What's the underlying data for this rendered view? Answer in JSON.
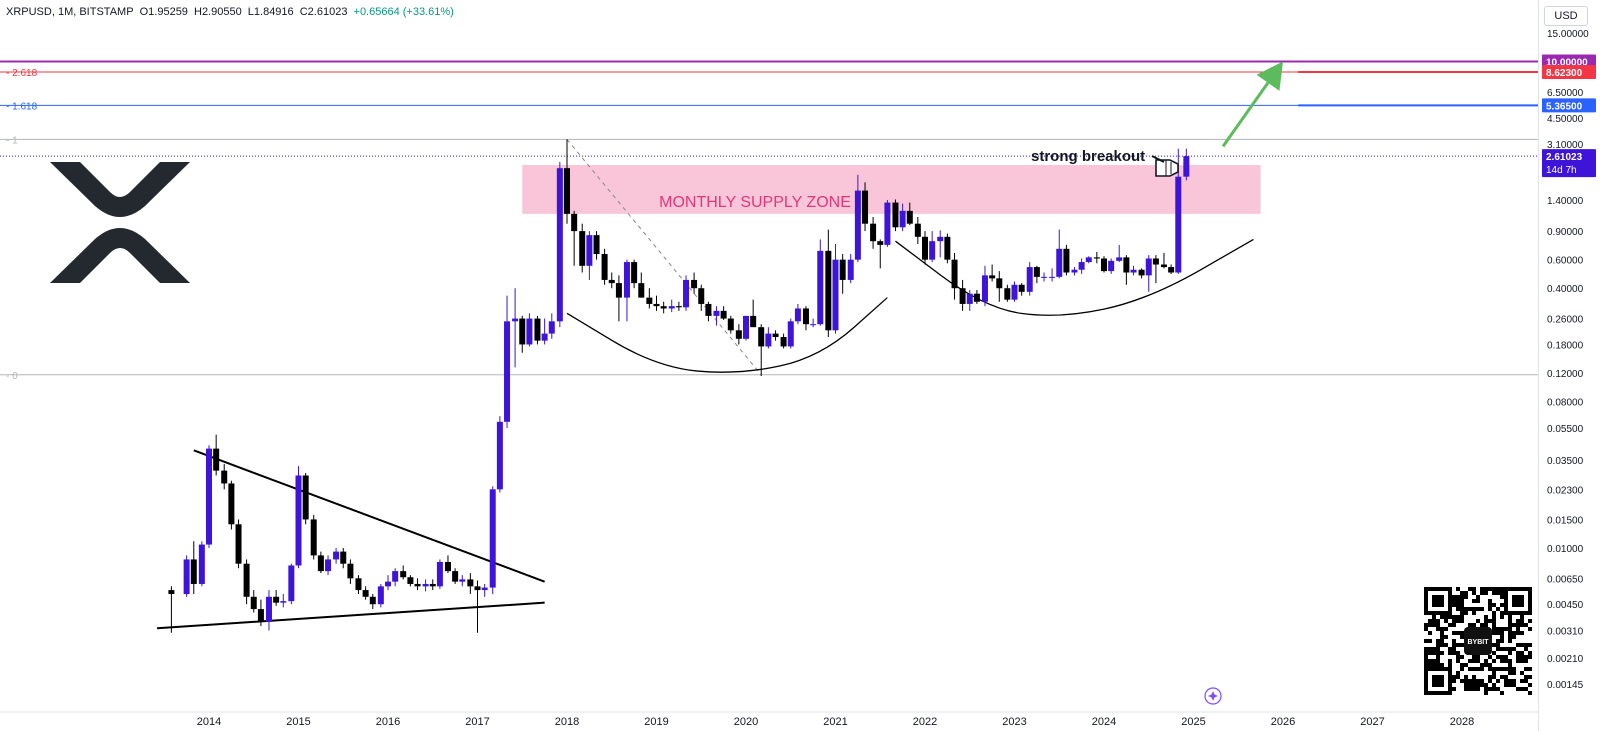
{
  "header": {
    "symbol": "XRPUSD, 1M, BITSTAMP",
    "open": "O1.95259",
    "high": "H2.90550",
    "low": "L1.84916",
    "close": "C2.61023",
    "change": "+0.65664 (+33.61%)"
  },
  "currency_button": "USD",
  "colors": {
    "bull": "#3d14d8",
    "bear": "#000000",
    "supply_zone": "#f8c6d8",
    "supply_text": "#e5357a",
    "fib_10": "#9c27b0",
    "fib_8": "#f23645",
    "fib_5": "#2962ff",
    "arrow": "#5cbb5c"
  },
  "chart_data": {
    "type": "candlestick",
    "scale": "log",
    "ylim": [
      0.0014,
      20
    ],
    "x_range": [
      "2013-06",
      "2028-12"
    ],
    "x_ticks": [
      "2014",
      "2015",
      "2016",
      "2017",
      "2018",
      "2019",
      "2020",
      "2021",
      "2022",
      "2023",
      "2024",
      "2025",
      "2026",
      "2027",
      "2028"
    ],
    "y_ticks": [
      "15.00000",
      "6.50000",
      "4.50000",
      "3.10000",
      "1.40000",
      "0.90000",
      "0.60000",
      "0.40000",
      "0.26000",
      "0.18000",
      "0.12000",
      "0.08000",
      "0.05500",
      "0.03500",
      "0.02300",
      "0.01500",
      "0.01000",
      "0.00650",
      "0.00450",
      "0.00310",
      "0.00210",
      "0.00145"
    ],
    "price_tags": [
      {
        "label": "10.00000",
        "value": 10.0,
        "color": "#9c27b0"
      },
      {
        "label": "8.62300",
        "value": 8.623,
        "color": "#f23645"
      },
      {
        "label": "5.36500",
        "value": 5.365,
        "color": "#2962ff"
      },
      {
        "label": "2.61023",
        "value": 2.61023,
        "color": "#3d14d8",
        "sub": "14d 7h"
      }
    ],
    "fib_levels": [
      {
        "label": "2.618",
        "value": 8.623,
        "color": "#f23645"
      },
      {
        "label": "1.618",
        "value": 5.365,
        "color": "#2962ff"
      },
      {
        "label": "1",
        "value": 3.31,
        "color": "#b2b5be"
      },
      {
        "label": "0",
        "value": 0.117,
        "color": "#b2b5be"
      }
    ],
    "annotations": {
      "supply_zone_label": "MONTHLY SUPPLY ZONE",
      "supply_zone_range": [
        1.15,
        2.3
      ],
      "breakout_label": "strong breakout"
    },
    "candles": [
      [
        2013.58,
        0.0055,
        0.0058,
        0.003,
        0.0052
      ],
      [
        2013.75,
        0.0052,
        0.009,
        0.005,
        0.0085
      ],
      [
        2013.83,
        0.0085,
        0.011,
        0.0052,
        0.006
      ],
      [
        2013.92,
        0.006,
        0.011,
        0.0058,
        0.0105
      ],
      [
        2014.0,
        0.0105,
        0.043,
        0.01,
        0.041
      ],
      [
        2014.08,
        0.041,
        0.05,
        0.028,
        0.03
      ],
      [
        2014.17,
        0.03,
        0.033,
        0.023,
        0.025
      ],
      [
        2014.25,
        0.025,
        0.026,
        0.013,
        0.014
      ],
      [
        2014.33,
        0.014,
        0.015,
        0.0075,
        0.008
      ],
      [
        2014.42,
        0.008,
        0.0085,
        0.0045,
        0.005
      ],
      [
        2014.5,
        0.005,
        0.0055,
        0.004,
        0.0042
      ],
      [
        2014.58,
        0.0042,
        0.0048,
        0.0033,
        0.0035
      ],
      [
        2014.67,
        0.0035,
        0.0055,
        0.0031,
        0.005
      ],
      [
        2014.75,
        0.005,
        0.0055,
        0.0044,
        0.0046
      ],
      [
        2014.83,
        0.0046,
        0.0052,
        0.0043,
        0.0047
      ],
      [
        2014.92,
        0.0047,
        0.008,
        0.0045,
        0.0078
      ],
      [
        2015.0,
        0.0078,
        0.032,
        0.0075,
        0.028
      ],
      [
        2015.08,
        0.028,
        0.029,
        0.014,
        0.015
      ],
      [
        2015.17,
        0.015,
        0.016,
        0.0085,
        0.009
      ],
      [
        2015.25,
        0.009,
        0.0095,
        0.007,
        0.0072
      ],
      [
        2015.33,
        0.0072,
        0.009,
        0.0068,
        0.0085
      ],
      [
        2015.42,
        0.0085,
        0.01,
        0.008,
        0.0095
      ],
      [
        2015.5,
        0.0095,
        0.01,
        0.0075,
        0.008
      ],
      [
        2015.58,
        0.008,
        0.0085,
        0.006,
        0.0065
      ],
      [
        2015.67,
        0.0065,
        0.0068,
        0.0052,
        0.0055
      ],
      [
        2015.75,
        0.0055,
        0.0058,
        0.0048,
        0.005
      ],
      [
        2015.83,
        0.005,
        0.0052,
        0.0042,
        0.0045
      ],
      [
        2015.92,
        0.0045,
        0.006,
        0.0043,
        0.0058
      ],
      [
        2016.0,
        0.0058,
        0.0068,
        0.0055,
        0.0062
      ],
      [
        2016.08,
        0.0062,
        0.0075,
        0.0058,
        0.0072
      ],
      [
        2016.17,
        0.0072,
        0.0078,
        0.0064,
        0.0066
      ],
      [
        2016.25,
        0.0066,
        0.0068,
        0.0058,
        0.006
      ],
      [
        2016.33,
        0.006,
        0.0065,
        0.0055,
        0.0058
      ],
      [
        2016.42,
        0.0058,
        0.0064,
        0.0054,
        0.006
      ],
      [
        2016.5,
        0.006,
        0.0064,
        0.0055,
        0.0058
      ],
      [
        2016.58,
        0.0058,
        0.0085,
        0.0056,
        0.0082
      ],
      [
        2016.67,
        0.0082,
        0.009,
        0.007,
        0.0072
      ],
      [
        2016.75,
        0.0072,
        0.0075,
        0.006,
        0.0062
      ],
      [
        2016.83,
        0.0062,
        0.0068,
        0.0058,
        0.0064
      ],
      [
        2016.92,
        0.0064,
        0.007,
        0.0052,
        0.0058
      ],
      [
        2017.0,
        0.0058,
        0.0063,
        0.003,
        0.0055
      ],
      [
        2017.08,
        0.0055,
        0.006,
        0.005,
        0.0057
      ],
      [
        2017.17,
        0.0057,
        0.024,
        0.0052,
        0.023
      ],
      [
        2017.25,
        0.023,
        0.065,
        0.022,
        0.06
      ],
      [
        2017.33,
        0.06,
        0.36,
        0.055,
        0.25
      ],
      [
        2017.42,
        0.25,
        0.4,
        0.13,
        0.26
      ],
      [
        2017.5,
        0.26,
        0.27,
        0.16,
        0.18
      ],
      [
        2017.58,
        0.18,
        0.28,
        0.175,
        0.26
      ],
      [
        2017.67,
        0.26,
        0.27,
        0.18,
        0.19
      ],
      [
        2017.75,
        0.19,
        0.26,
        0.18,
        0.21
      ],
      [
        2017.83,
        0.21,
        0.28,
        0.195,
        0.25
      ],
      [
        2017.92,
        0.25,
        2.4,
        0.23,
        2.2
      ],
      [
        2018.0,
        2.2,
        3.31,
        1.0,
        1.15
      ],
      [
        2018.08,
        1.15,
        1.2,
        0.55,
        0.9
      ],
      [
        2018.17,
        0.9,
        1.0,
        0.5,
        0.55
      ],
      [
        2018.25,
        0.55,
        0.9,
        0.45,
        0.85
      ],
      [
        2018.33,
        0.85,
        0.9,
        0.6,
        0.65
      ],
      [
        2018.42,
        0.65,
        0.7,
        0.42,
        0.45
      ],
      [
        2018.5,
        0.45,
        0.5,
        0.4,
        0.43
      ],
      [
        2018.58,
        0.43,
        0.48,
        0.25,
        0.35
      ],
      [
        2018.67,
        0.35,
        0.6,
        0.25,
        0.58
      ],
      [
        2018.75,
        0.58,
        0.6,
        0.4,
        0.43
      ],
      [
        2018.83,
        0.43,
        0.5,
        0.35,
        0.35
      ],
      [
        2018.92,
        0.35,
        0.4,
        0.3,
        0.32
      ],
      [
        2019.0,
        0.32,
        0.36,
        0.29,
        0.31
      ],
      [
        2019.08,
        0.31,
        0.33,
        0.28,
        0.3
      ],
      [
        2019.17,
        0.3,
        0.34,
        0.285,
        0.31
      ],
      [
        2019.25,
        0.31,
        0.33,
        0.29,
        0.305
      ],
      [
        2019.33,
        0.305,
        0.48,
        0.29,
        0.45
      ],
      [
        2019.42,
        0.45,
        0.5,
        0.37,
        0.4
      ],
      [
        2019.5,
        0.4,
        0.42,
        0.29,
        0.32
      ],
      [
        2019.58,
        0.32,
        0.33,
        0.25,
        0.27
      ],
      [
        2019.67,
        0.27,
        0.31,
        0.235,
        0.29
      ],
      [
        2019.75,
        0.29,
        0.31,
        0.255,
        0.26
      ],
      [
        2019.83,
        0.26,
        0.27,
        0.21,
        0.22
      ],
      [
        2019.92,
        0.22,
        0.24,
        0.18,
        0.195
      ],
      [
        2020.0,
        0.195,
        0.27,
        0.19,
        0.27
      ],
      [
        2020.08,
        0.27,
        0.34,
        0.25,
        0.23
      ],
      [
        2020.17,
        0.23,
        0.24,
        0.115,
        0.175
      ],
      [
        2020.25,
        0.175,
        0.23,
        0.17,
        0.21
      ],
      [
        2020.33,
        0.21,
        0.22,
        0.19,
        0.2
      ],
      [
        2020.42,
        0.2,
        0.21,
        0.17,
        0.175
      ],
      [
        2020.5,
        0.175,
        0.26,
        0.17,
        0.25
      ],
      [
        2020.58,
        0.25,
        0.32,
        0.24,
        0.3
      ],
      [
        2020.67,
        0.3,
        0.31,
        0.22,
        0.24
      ],
      [
        2020.75,
        0.24,
        0.26,
        0.23,
        0.24
      ],
      [
        2020.83,
        0.24,
        0.8,
        0.235,
        0.68
      ],
      [
        2020.92,
        0.68,
        0.92,
        0.2,
        0.22
      ],
      [
        2021.0,
        0.22,
        0.75,
        0.21,
        0.6
      ],
      [
        2021.08,
        0.6,
        0.65,
        0.37,
        0.45
      ],
      [
        2021.17,
        0.45,
        0.65,
        0.43,
        0.6
      ],
      [
        2021.25,
        0.6,
        2.0,
        0.58,
        1.6
      ],
      [
        2021.33,
        1.6,
        1.8,
        0.9,
        1.0
      ],
      [
        2021.42,
        1.0,
        1.1,
        0.7,
        0.78
      ],
      [
        2021.5,
        0.78,
        0.8,
        0.53,
        0.74
      ],
      [
        2021.58,
        0.74,
        1.4,
        0.72,
        1.35
      ],
      [
        2021.67,
        1.35,
        1.41,
        0.9,
        0.95
      ],
      [
        2021.75,
        0.95,
        1.33,
        0.9,
        1.2
      ],
      [
        2021.83,
        1.2,
        1.35,
        0.98,
        1.0
      ],
      [
        2021.92,
        1.0,
        1.1,
        0.75,
        0.83
      ],
      [
        2022.0,
        0.83,
        0.9,
        0.56,
        0.6
      ],
      [
        2022.08,
        0.6,
        0.9,
        0.58,
        0.78
      ],
      [
        2022.17,
        0.78,
        0.91,
        0.62,
        0.83
      ],
      [
        2022.25,
        0.83,
        0.87,
        0.57,
        0.6
      ],
      [
        2022.33,
        0.6,
        0.66,
        0.34,
        0.4
      ],
      [
        2022.42,
        0.4,
        0.45,
        0.29,
        0.32
      ],
      [
        2022.5,
        0.32,
        0.39,
        0.29,
        0.37
      ],
      [
        2022.58,
        0.37,
        0.39,
        0.32,
        0.33
      ],
      [
        2022.67,
        0.33,
        0.55,
        0.31,
        0.48
      ],
      [
        2022.75,
        0.48,
        0.56,
        0.44,
        0.46
      ],
      [
        2022.83,
        0.46,
        0.51,
        0.33,
        0.4
      ],
      [
        2022.92,
        0.4,
        0.42,
        0.33,
        0.34
      ],
      [
        2023.0,
        0.34,
        0.44,
        0.33,
        0.42
      ],
      [
        2023.08,
        0.42,
        0.43,
        0.36,
        0.38
      ],
      [
        2023.17,
        0.38,
        0.58,
        0.36,
        0.54
      ],
      [
        2023.25,
        0.54,
        0.55,
        0.43,
        0.47
      ],
      [
        2023.33,
        0.47,
        0.5,
        0.44,
        0.47
      ],
      [
        2023.42,
        0.47,
        0.53,
        0.44,
        0.47
      ],
      [
        2023.5,
        0.47,
        0.92,
        0.46,
        0.7
      ],
      [
        2023.58,
        0.7,
        0.74,
        0.48,
        0.5
      ],
      [
        2023.67,
        0.5,
        0.54,
        0.48,
        0.52
      ],
      [
        2023.75,
        0.52,
        0.61,
        0.49,
        0.58
      ],
      [
        2023.83,
        0.58,
        0.63,
        0.57,
        0.62
      ],
      [
        2023.92,
        0.62,
        0.67,
        0.57,
        0.61
      ],
      [
        2024.0,
        0.61,
        0.63,
        0.5,
        0.51
      ],
      [
        2024.08,
        0.51,
        0.61,
        0.49,
        0.59
      ],
      [
        2024.17,
        0.59,
        0.74,
        0.58,
        0.62
      ],
      [
        2024.25,
        0.62,
        0.64,
        0.42,
        0.5
      ],
      [
        2024.33,
        0.5,
        0.55,
        0.48,
        0.52
      ],
      [
        2024.42,
        0.52,
        0.53,
        0.46,
        0.48
      ],
      [
        2024.5,
        0.48,
        0.64,
        0.38,
        0.61
      ],
      [
        2024.58,
        0.61,
        0.64,
        0.43,
        0.56
      ],
      [
        2024.67,
        0.56,
        0.66,
        0.53,
        0.54
      ],
      [
        2024.75,
        0.54,
        0.56,
        0.49,
        0.5
      ],
      [
        2024.83,
        0.5,
        2.9,
        0.49,
        1.95
      ],
      [
        2024.92,
        1.95,
        2.9055,
        1.8492,
        2.6102
      ]
    ],
    "drawings": {
      "triangle_upper": [
        [
          2013.83,
          0.04
        ],
        [
          2017.75,
          0.0062
        ]
      ],
      "triangle_lower": [
        [
          2013.42,
          0.0032
        ],
        [
          2017.75,
          0.0046
        ]
      ],
      "dashed_diagonal": [
        [
          2018.0,
          3.31
        ],
        [
          2020.17,
          0.117
        ]
      ],
      "cup_1": [
        [
          2018.0,
          0.28
        ],
        [
          2019.0,
          0.13
        ],
        [
          2019.92,
          0.117
        ],
        [
          2020.83,
          0.15
        ],
        [
          2021.58,
          0.35
        ]
      ],
      "cup_2": [
        [
          2021.67,
          0.78
        ],
        [
          2022.67,
          0.3
        ],
        [
          2023.5,
          0.26
        ],
        [
          2024.5,
          0.34
        ],
        [
          2025.67,
          0.8
        ]
      ],
      "arrow": [
        [
          2025.33,
          3.0
        ],
        [
          2026.0,
          10.0
        ]
      ],
      "fib_line_start": 2026.17
    }
  }
}
